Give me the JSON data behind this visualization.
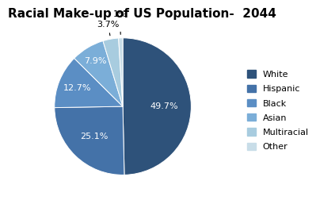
{
  "title": "Racial Make-up of US Population-  2044",
  "labels": [
    "White",
    "Hispanic",
    "Black",
    "Asian",
    "Multiracial",
    "Other"
  ],
  "values": [
    49.7,
    25.1,
    12.7,
    7.9,
    3.7,
    1.0
  ],
  "colors": [
    "#2E527A",
    "#4472A8",
    "#5B8EC4",
    "#7BAED8",
    "#A8CCDF",
    "#C8DDE8"
  ],
  "pct_labels": [
    "49.7%",
    "25.1%",
    "12.7%",
    "7.9%",
    "3.7%",
    "1%"
  ],
  "title_fontsize": 11,
  "legend_fontsize": 8,
  "pct_fontsize": 8
}
